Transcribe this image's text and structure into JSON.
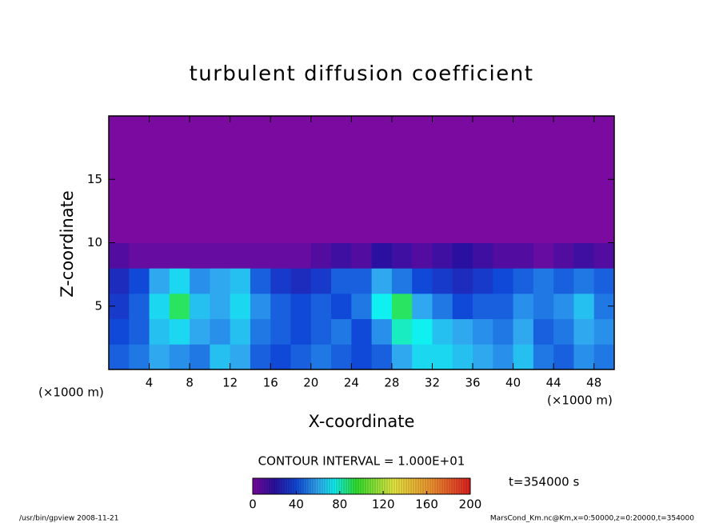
{
  "chart_data": {
    "type": "heatmap",
    "title": "turbulent diffusion coefficient",
    "x_label": "X-coordinate",
    "y_label": "Z-coordinate",
    "x_unit": "(×1000 m)",
    "y_unit": "(×1000 m)",
    "xlim": [
      0,
      50
    ],
    "ylim": [
      0,
      20
    ],
    "xticks": [
      4,
      8,
      12,
      16,
      20,
      24,
      28,
      32,
      36,
      40,
      44,
      48
    ],
    "yticks": [
      5,
      10,
      15
    ],
    "x": [
      1,
      3,
      5,
      7,
      9,
      11,
      13,
      15,
      17,
      19,
      21,
      23,
      25,
      27,
      29,
      31,
      33,
      35,
      37,
      39,
      41,
      43,
      45,
      47,
      49
    ],
    "y": [
      1,
      3,
      5,
      7,
      9,
      11,
      13,
      15,
      17,
      19
    ],
    "values": [
      [
        45,
        50,
        60,
        55,
        50,
        65,
        60,
        45,
        40,
        45,
        50,
        45,
        40,
        45,
        60,
        70,
        70,
        65,
        60,
        55,
        65,
        50,
        45,
        55,
        50
      ],
      [
        40,
        45,
        65,
        70,
        60,
        55,
        65,
        50,
        45,
        40,
        45,
        50,
        40,
        55,
        80,
        75,
        65,
        60,
        55,
        50,
        60,
        45,
        50,
        60,
        55
      ],
      [
        35,
        45,
        70,
        90,
        65,
        60,
        70,
        55,
        45,
        40,
        45,
        40,
        50,
        75,
        90,
        60,
        50,
        40,
        45,
        45,
        55,
        50,
        55,
        65,
        50
      ],
      [
        30,
        40,
        60,
        70,
        55,
        60,
        65,
        45,
        35,
        30,
        35,
        45,
        45,
        60,
        50,
        40,
        35,
        30,
        35,
        40,
        45,
        50,
        45,
        50,
        45
      ],
      [
        10,
        5,
        5,
        5,
        5,
        5,
        5,
        5,
        5,
        5,
        10,
        15,
        10,
        20,
        15,
        10,
        15,
        20,
        15,
        10,
        10,
        5,
        10,
        15,
        10
      ],
      [
        0,
        0,
        0,
        0,
        0,
        0,
        0,
        0,
        0,
        0,
        0,
        0,
        0,
        0,
        0,
        0,
        0,
        0,
        0,
        0,
        0,
        0,
        0,
        0,
        0
      ],
      [
        0,
        0,
        0,
        0,
        0,
        0,
        0,
        0,
        0,
        0,
        0,
        0,
        0,
        0,
        0,
        0,
        0,
        0,
        0,
        0,
        0,
        0,
        0,
        0,
        0
      ],
      [
        0,
        0,
        0,
        0,
        0,
        0,
        0,
        0,
        0,
        0,
        0,
        0,
        0,
        0,
        0,
        0,
        0,
        0,
        0,
        0,
        0,
        0,
        0,
        0,
        0
      ],
      [
        0,
        0,
        0,
        0,
        0,
        0,
        0,
        0,
        0,
        0,
        0,
        0,
        0,
        0,
        0,
        0,
        0,
        0,
        0,
        0,
        0,
        0,
        0,
        0,
        0
      ],
      [
        0,
        0,
        0,
        0,
        0,
        0,
        0,
        0,
        0,
        0,
        0,
        0,
        0,
        0,
        0,
        0,
        0,
        0,
        0,
        0,
        0,
        0,
        0,
        0,
        0
      ]
    ],
    "colormap": [
      {
        "value": 0,
        "color": "#7a0aa0"
      },
      {
        "value": 20,
        "color": "#2a10a0"
      },
      {
        "value": 40,
        "color": "#1048d8"
      },
      {
        "value": 60,
        "color": "#30a8f0"
      },
      {
        "value": 75,
        "color": "#10f0f0"
      },
      {
        "value": 95,
        "color": "#30e030"
      },
      {
        "value": 130,
        "color": "#e8e840"
      },
      {
        "value": 165,
        "color": "#f09030"
      },
      {
        "value": 200,
        "color": "#e02020"
      }
    ],
    "colorbar_lim": [
      0,
      200
    ],
    "colorbar_ticks": [
      0,
      40,
      80,
      120,
      160,
      200
    ],
    "contour_interval": "CONTOUR INTERVAL = 1.000E+01",
    "time_label": "t=354000 s",
    "footer_left": "/usr/bin/gpview   2008-11-21",
    "footer_right": "MarsCond_Km.nc@Km,x=0:50000,z=0:20000,t=354000"
  }
}
